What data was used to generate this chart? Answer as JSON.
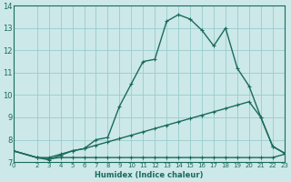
{
  "xlabel": "Humidex (Indice chaleur)",
  "bg_color": "#cce8e8",
  "grid_color": "#99cccc",
  "line_color": "#1a6b5a",
  "line1_x": [
    0,
    2,
    3,
    4,
    5,
    6,
    7,
    8,
    9,
    10,
    11,
    12,
    13,
    14,
    15,
    16,
    17,
    18,
    19,
    20,
    21,
    22,
    23
  ],
  "line1_y": [
    7.5,
    7.2,
    7.1,
    7.3,
    7.5,
    7.6,
    8.0,
    8.1,
    9.5,
    10.5,
    11.5,
    11.6,
    13.3,
    13.6,
    13.4,
    12.9,
    12.2,
    13.0,
    11.2,
    10.4,
    9.0,
    7.7,
    7.4
  ],
  "line2_x": [
    0,
    2,
    3,
    4,
    5,
    6,
    7,
    8,
    9,
    10,
    11,
    12,
    13,
    14,
    15,
    16,
    17,
    18,
    19,
    20,
    21,
    22,
    23
  ],
  "line2_y": [
    7.5,
    7.2,
    7.2,
    7.35,
    7.5,
    7.6,
    7.75,
    7.9,
    8.05,
    8.2,
    8.35,
    8.5,
    8.65,
    8.8,
    8.95,
    9.1,
    9.25,
    9.4,
    9.55,
    9.7,
    9.0,
    7.7,
    7.4
  ],
  "line3_x": [
    0,
    2,
    3,
    4,
    5,
    6,
    7,
    8,
    9,
    10,
    11,
    12,
    13,
    14,
    15,
    16,
    17,
    18,
    19,
    20,
    21,
    22,
    23
  ],
  "line3_y": [
    7.5,
    7.2,
    7.15,
    7.2,
    7.2,
    7.2,
    7.2,
    7.2,
    7.2,
    7.2,
    7.2,
    7.2,
    7.2,
    7.2,
    7.2,
    7.2,
    7.2,
    7.2,
    7.2,
    7.2,
    7.2,
    7.2,
    7.35
  ],
  "xlim": [
    0,
    23
  ],
  "ylim": [
    7,
    14
  ],
  "xticks": [
    0,
    2,
    3,
    4,
    5,
    6,
    7,
    8,
    9,
    10,
    11,
    12,
    13,
    14,
    15,
    16,
    17,
    18,
    19,
    20,
    21,
    22,
    23
  ],
  "yticks": [
    7,
    8,
    9,
    10,
    11,
    12,
    13,
    14
  ]
}
